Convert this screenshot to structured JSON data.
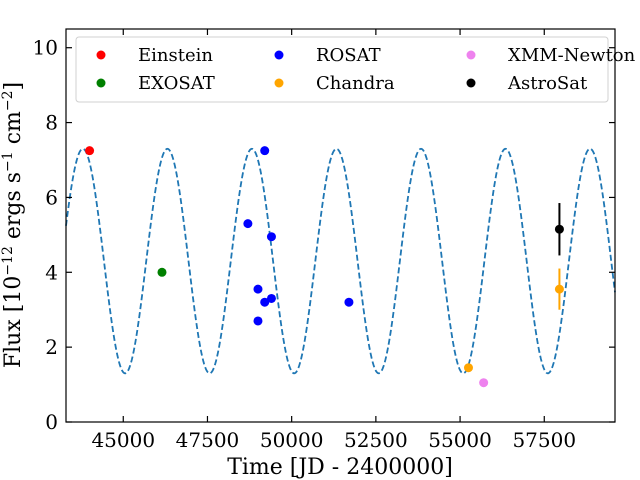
{
  "chart_data": {
    "type": "scatter",
    "title": "",
    "xlabel": "Time [JD - 2400000]",
    "ylabel_main": "Flux [10",
    "ylabel_exp1": "−12",
    "ylabel_mid1": " ergs s",
    "ylabel_exp2": "−1",
    "ylabel_mid2": " cm",
    "ylabel_exp3": "−2",
    "ylabel_end": "]",
    "xlim": [
      43300,
      59600
    ],
    "ylim": [
      0,
      10.5
    ],
    "x_ticks": [
      45000,
      47500,
      50000,
      52500,
      55000,
      57500
    ],
    "x_tick_labels": [
      "45000",
      "47500",
      "50000",
      "52500",
      "55000",
      "57500"
    ],
    "y_ticks": [
      0,
      2,
      4,
      6,
      8,
      10
    ],
    "y_tick_labels": [
      "0",
      "2",
      "4",
      "6",
      "8",
      "10"
    ],
    "legend_position": "top",
    "model_curve": {
      "name": "sinusoidal model",
      "style": "dashed",
      "color": "#1f77b4",
      "mean": 4.3,
      "amplitude": 3.0,
      "period": 2510,
      "peak_time": 43800
    },
    "series": [
      {
        "name": "Einstein",
        "color": "#ff0000",
        "points": [
          {
            "x": 44000,
            "y": 7.25
          }
        ]
      },
      {
        "name": "EXOSAT",
        "color": "#008000",
        "points": [
          {
            "x": 46150,
            "y": 4.0
          }
        ]
      },
      {
        "name": "ROSAT",
        "color": "#0000ff",
        "points": [
          {
            "x": 48700,
            "y": 5.3
          },
          {
            "x": 49200,
            "y": 7.25
          },
          {
            "x": 49400,
            "y": 4.95
          },
          {
            "x": 49000,
            "y": 3.55
          },
          {
            "x": 49200,
            "y": 3.2
          },
          {
            "x": 49400,
            "y": 3.3
          },
          {
            "x": 49000,
            "y": 2.7
          },
          {
            "x": 51700,
            "y": 3.2
          }
        ]
      },
      {
        "name": "Chandra",
        "color": "#ffa500",
        "points": [
          {
            "x": 55250,
            "y": 1.45,
            "err": 0.1
          },
          {
            "x": 57950,
            "y": 3.55,
            "err": 0.55
          }
        ]
      },
      {
        "name": "XMM-Newton",
        "color": "#ee82ee",
        "points": [
          {
            "x": 55700,
            "y": 1.05
          }
        ]
      },
      {
        "name": "AstroSat",
        "color": "#000000",
        "points": [
          {
            "x": 57950,
            "y": 5.15,
            "err": 0.7
          }
        ]
      }
    ],
    "legend_order": [
      "Einstein",
      "ROSAT",
      "XMM-Newton",
      "EXOSAT",
      "Chandra",
      "AstroSat"
    ]
  }
}
